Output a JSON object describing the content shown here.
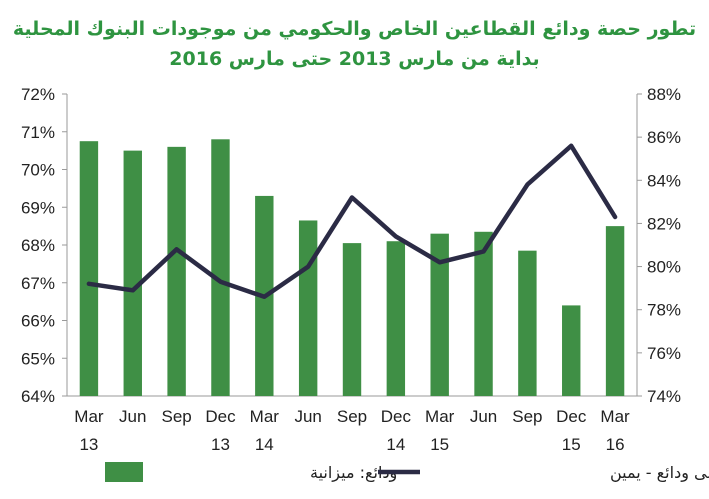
{
  "chart_data": {
    "type": "bar+line",
    "title_lines": [
      "تطور حصة ودائع القطاعين الخاص والحكومي من موجودات البنوك المحلية",
      "بداية من مارس 2013 حتى مارس 2016"
    ],
    "categories": [
      [
        "Mar",
        "13"
      ],
      [
        "Jun",
        ""
      ],
      [
        "Sep",
        ""
      ],
      [
        "Dec",
        "13"
      ],
      [
        "Mar",
        "14"
      ],
      [
        "Jun",
        ""
      ],
      [
        "Sep",
        ""
      ],
      [
        "Dec",
        "14"
      ],
      [
        "Mar",
        "15"
      ],
      [
        "Jun",
        ""
      ],
      [
        "Sep",
        ""
      ],
      [
        "Dec",
        "15"
      ],
      [
        "Mar",
        "16"
      ]
    ],
    "left_axis": {
      "min": 64,
      "max": 72,
      "step": 1,
      "suffix": "%"
    },
    "right_axis": {
      "min": 74,
      "max": 88,
      "step": 2,
      "suffix": "%"
    },
    "series": [
      {
        "name": "ودائع: ميزانية",
        "type": "bar",
        "axis": "left",
        "color": "#3f8f45",
        "values": [
          70.75,
          70.5,
          70.6,
          70.8,
          69.3,
          68.65,
          68.05,
          68.1,
          68.3,
          68.35,
          67.85,
          66.4,
          68.5
        ]
      },
      {
        "name": "ائتمان إلى ودائع - يمين",
        "type": "line",
        "axis": "right",
        "color": "#2b2b45",
        "values": [
          79.2,
          78.9,
          80.8,
          79.3,
          78.6,
          80.0,
          83.2,
          81.4,
          80.2,
          80.7,
          83.8,
          85.6,
          82.3
        ]
      }
    ],
    "grid": false
  }
}
